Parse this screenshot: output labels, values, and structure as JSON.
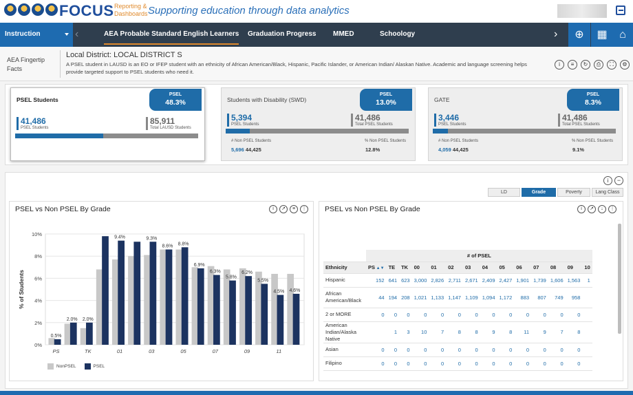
{
  "header": {
    "brand": "FOCUS",
    "brand_sub_1": "Reporting &",
    "brand_sub_2": "Dashboards",
    "tagline": "Supporting education through data analytics"
  },
  "nav": {
    "instruction": "Instruction",
    "items": [
      "AEA Probable Standard English Learners",
      "Graduation Progress",
      "MMED",
      "Schoology"
    ]
  },
  "info": {
    "fingertip": "AEA Fingertip Facts",
    "district": "Local District: LOCAL DISTRICT S",
    "description": "A PSEL student in LAUSD is an EO or IFEP student with an ethnicity of African American/Black, Hispanic, Pacific Islander, or American Indian/ Alaskan Native. Academic and language screening helps provide targeted support to PSEL students who need it."
  },
  "cards": [
    {
      "title": "PSEL Students",
      "badge_label": "PSEL",
      "badge_value": "48.3%",
      "left_value": "41,486",
      "left_label": "PSEL Students",
      "right_value": "85,911",
      "right_label": "Total LAUSD Students",
      "fill": 0.483
    },
    {
      "title": "Students with Disability (SWD)",
      "badge_label": "PSEL",
      "badge_value": "13.0%",
      "left_value": "5,394",
      "left_label": "PSEL Students",
      "right_value": "41,486",
      "right_label": "Total PSEL Students",
      "fill": 0.13,
      "sub_left_label": "# Non PSEL Students",
      "sub_left_a": "5,696",
      "sub_left_b": "44,425",
      "sub_right_label": "% Non PSEL Students",
      "sub_right_value": "12.8%"
    },
    {
      "title": "GATE",
      "badge_label": "PSEL",
      "badge_value": "8.3%",
      "left_value": "3,446",
      "left_label": "PSEL Students",
      "right_value": "41,486",
      "right_label": "Total PSEL Students",
      "fill": 0.083,
      "sub_left_label": "# Non PSEL Students",
      "sub_left_a": "4,059",
      "sub_left_b": "44,425",
      "sub_right_label": "% Non PSEL Students",
      "sub_right_value": "9.1%"
    }
  ],
  "tabs": [
    "LD",
    "Grade",
    "Poverty",
    "Lang Class"
  ],
  "active_tab": "Grade",
  "left_panel": {
    "title": "PSEL vs Non PSEL By Grade"
  },
  "right_panel": {
    "title": "PSEL vs Non PSEL By Grade"
  },
  "chart_data": {
    "type": "bar",
    "ylabel": "% of Students",
    "ylim": [
      0,
      10
    ],
    "yticks": [
      "0%",
      "2%",
      "4%",
      "6%",
      "8%",
      "10%"
    ],
    "categories": [
      "PS",
      "TE",
      "TK",
      "00",
      "01",
      "02",
      "03",
      "04",
      "05",
      "06",
      "07",
      "08",
      "09",
      "10",
      "11",
      "12"
    ],
    "xtick_labels": [
      "PS",
      "TK",
      "01",
      "03",
      "05",
      "07",
      "09",
      "11"
    ],
    "series": [
      {
        "name": "NonPSEL",
        "color": "#c8c8c8",
        "values": [
          0.6,
          1.9,
          1.5,
          6.8,
          7.7,
          8.0,
          8.1,
          8.6,
          8.6,
          7.0,
          7.1,
          6.8,
          6.9,
          6.6,
          6.4,
          6.4
        ]
      },
      {
        "name": "PSEL",
        "color": "#1c3360",
        "values": [
          0.5,
          2.0,
          2.0,
          9.8,
          9.4,
          9.3,
          9.3,
          8.6,
          8.8,
          6.9,
          6.3,
          5.8,
          6.2,
          5.5,
          4.5,
          4.6
        ]
      }
    ],
    "data_labels": [
      "0.5%",
      "2.0%",
      "2.0%",
      "",
      "9.4%",
      "",
      "9.3%",
      "8.6%",
      "8.8%",
      "6.9%",
      "6.3%",
      "5.8%",
      "6.2%",
      "5.5%",
      "4.5%",
      "4.6%"
    ]
  },
  "table": {
    "group_header": "# of PSEL",
    "columns": [
      "Ethnicity",
      "PS",
      "TE",
      "TK",
      "00",
      "01",
      "02",
      "03",
      "04",
      "05",
      "06",
      "07",
      "08",
      "09",
      "10"
    ],
    "rows": [
      {
        "ethnicity": "Hispanic",
        "values": [
          "152",
          "641",
          "623",
          "3,000",
          "2,826",
          "2,711",
          "2,671",
          "2,409",
          "2,427",
          "1,901",
          "1,739",
          "1,606",
          "1,563",
          "1"
        ]
      },
      {
        "ethnicity": "African American/Black",
        "values": [
          "44",
          "194",
          "208",
          "1,021",
          "1,133",
          "1,147",
          "1,109",
          "1,094",
          "1,172",
          "883",
          "807",
          "749",
          "958",
          ""
        ]
      },
      {
        "ethnicity": "2 or MORE",
        "values": [
          "0",
          "0",
          "0",
          "0",
          "0",
          "0",
          "0",
          "0",
          "0",
          "0",
          "0",
          "0",
          "0",
          ""
        ]
      },
      {
        "ethnicity": "American Indian/Alaska Native",
        "values": [
          "",
          "1",
          "3",
          "10",
          "7",
          "8",
          "8",
          "9",
          "8",
          "11",
          "9",
          "7",
          "8",
          ""
        ]
      },
      {
        "ethnicity": "Asian",
        "values": [
          "0",
          "0",
          "0",
          "0",
          "0",
          "0",
          "0",
          "0",
          "0",
          "0",
          "0",
          "0",
          "0",
          ""
        ]
      },
      {
        "ethnicity": "Filipino",
        "values": [
          "0",
          "0",
          "0",
          "0",
          "0",
          "0",
          "0",
          "0",
          "0",
          "0",
          "0",
          "0",
          "0",
          ""
        ]
      }
    ]
  }
}
